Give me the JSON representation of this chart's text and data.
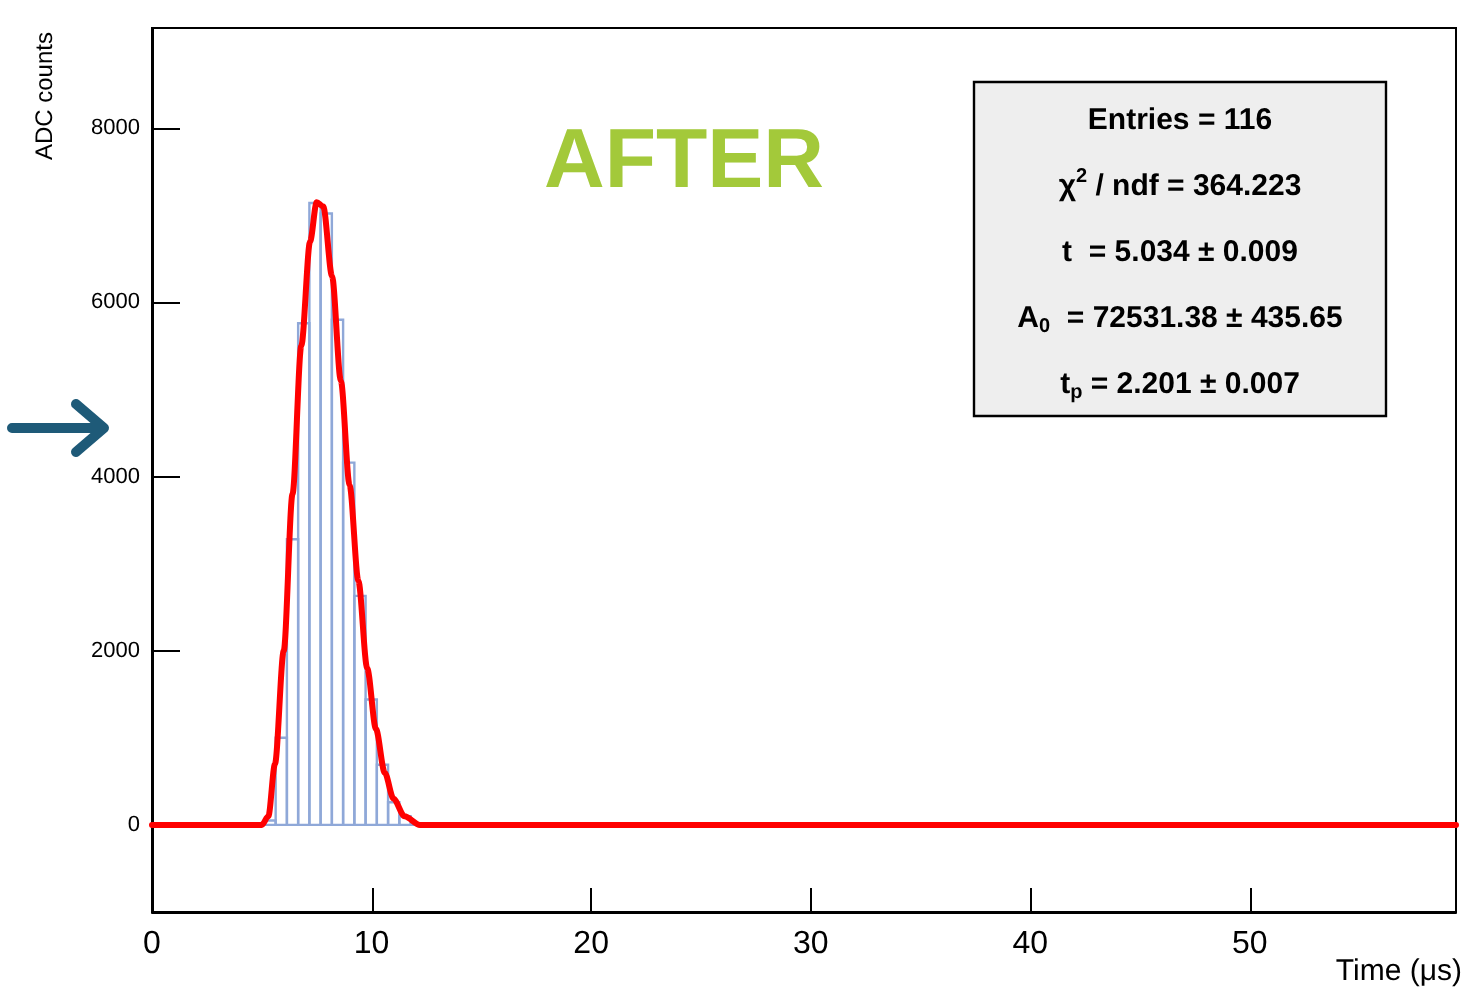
{
  "chart_data": {
    "type": "histogram",
    "xlabel": "Time (μs)",
    "ylabel": "ADC counts",
    "bins": [
      0,
      4.608,
      5.12,
      5.632,
      6.144,
      6.656,
      7.168,
      7.68,
      8.192,
      8.704,
      9.216,
      9.728,
      10.24,
      10.752,
      11.264,
      11.776,
      12.288,
      59.39
    ],
    "values": [
      0,
      0,
      50,
      1000,
      3280,
      5760,
      7140,
      7020,
      5800,
      4160,
      2630,
      1440,
      690,
      260,
      100,
      0,
      0
    ],
    "color": "#8fa8d8",
    "series": [
      {
        "type": "line",
        "color": "#ff0000",
        "x": [
          0,
          5.0,
          5.3,
          5.6,
          6.0,
          6.4,
          6.8,
          7.2,
          7.5,
          7.8,
          8.2,
          8.6,
          9.0,
          9.4,
          9.8,
          10.2,
          10.6,
          11.0,
          11.5,
          12.2,
          59.39
        ],
        "values": [
          0,
          0,
          100,
          700,
          2000,
          3800,
          5500,
          6700,
          7150,
          7100,
          6300,
          5100,
          3900,
          2800,
          1800,
          1100,
          600,
          300,
          100,
          0,
          0
        ]
      }
    ],
    "xlim": [
      0,
      59.39
    ],
    "xticks": [
      0,
      10,
      20,
      30,
      40,
      50
    ],
    "ylim": [
      -1000,
      9150
    ],
    "yticks": [
      0,
      2000,
      4000,
      6000,
      8000
    ],
    "grid": false,
    "marker": "none",
    "line_style": "solid",
    "title": "AFTER",
    "annotations": [
      "Entries = 116",
      "χ$^{2}$ / ndf = 364.223",
      "t  = 5.034 ± 0.009",
      "A$_{0}$  = 72531.38 ± 435.65",
      "t$_{p}$ = 2.201 ± 0.007"
    ]
  }
}
